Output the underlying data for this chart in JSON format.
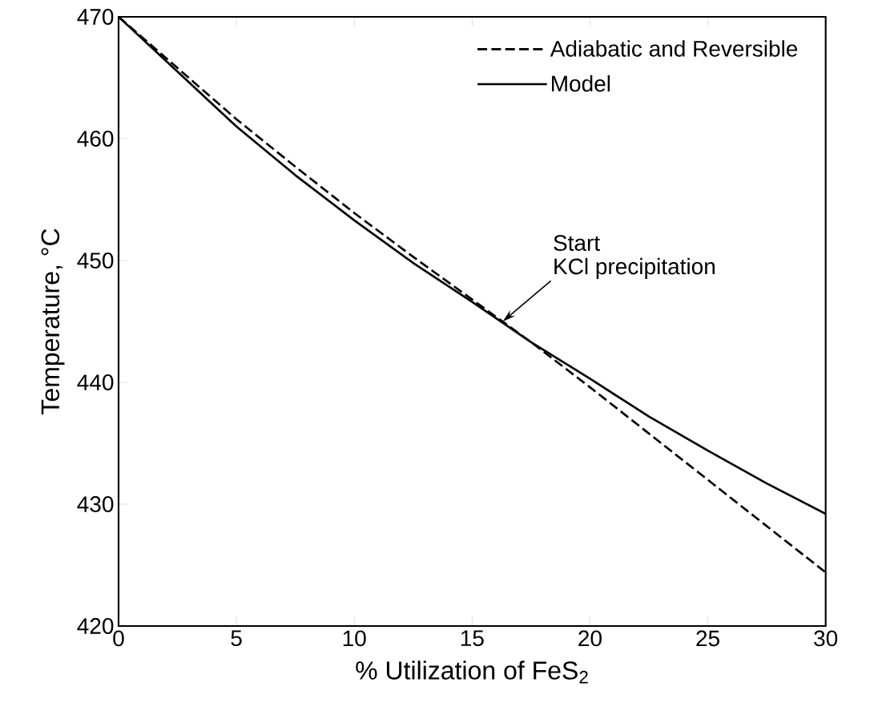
{
  "chart_data": {
    "type": "line",
    "xlabel": "% Utilization of FeS$_{2}$",
    "ylabel": "Temperature, °C",
    "x": [
      0,
      2.5,
      5,
      7.5,
      10,
      12.5,
      15,
      17.5,
      20,
      22.5,
      25,
      27.5,
      30
    ],
    "series": [
      {
        "name": "Adiabatic and Reversible",
        "color": "#000000",
        "line_style": "dashed",
        "values": [
          470,
          465.8,
          461.6,
          457.7,
          453.9,
          450.3,
          446.8,
          443.3,
          439.6,
          435.8,
          432.0,
          428.2,
          424.4
        ]
      },
      {
        "name": "Model",
        "color": "#000000",
        "line_style": "solid",
        "values": [
          470,
          465.5,
          461.0,
          457.0,
          453.3,
          449.8,
          446.6,
          443.3,
          440.3,
          437.2,
          434.4,
          431.7,
          429.2
        ]
      }
    ],
    "annotations": [
      "Start",
      {
        "text": "KCl precipitation",
        "x": 16.3,
        "y": 445
      }
    ],
    "xlim": [
      0,
      30
    ],
    "ylim": [
      420,
      470
    ],
    "xticks": [
      0,
      5,
      10,
      15,
      20,
      25,
      30
    ],
    "yticks": [
      420,
      430,
      440,
      450,
      460,
      470
    ],
    "grid": false,
    "legend": "top right",
    "marker": "none"
  }
}
